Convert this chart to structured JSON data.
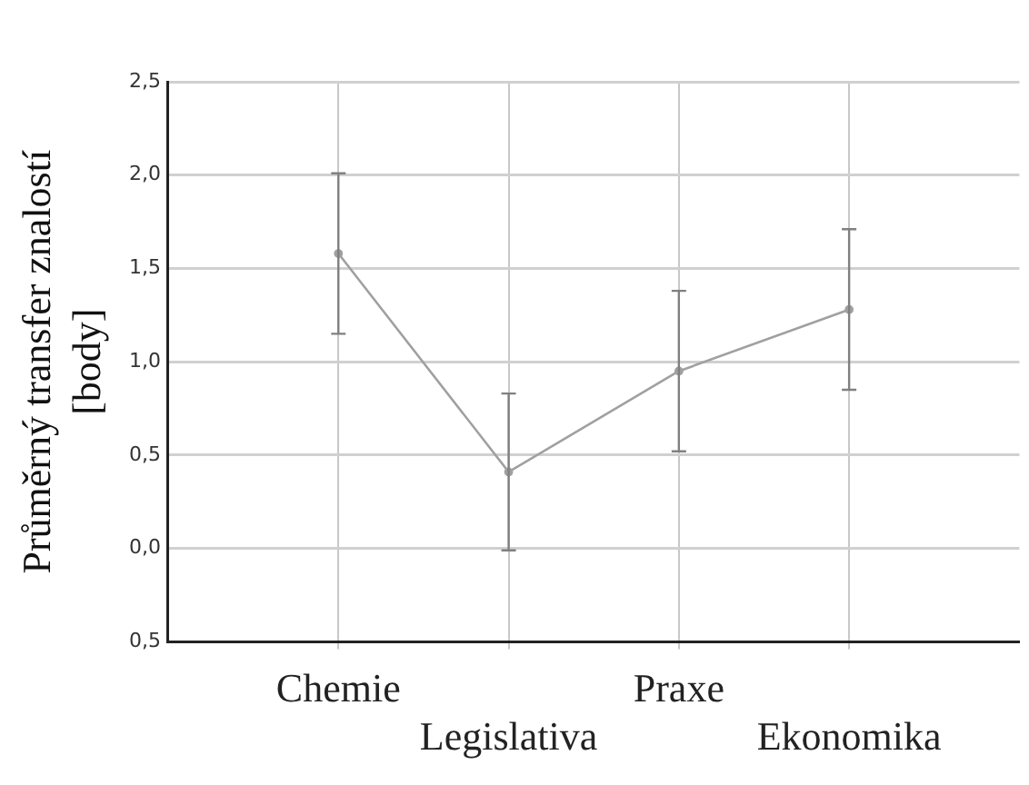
{
  "chart_data": {
    "type": "line",
    "ylabel": "Průměrný transfer znalostí [body]",
    "categories": [
      "Chemie",
      "Legislativa",
      "Praxe",
      "Ekonomika"
    ],
    "values": [
      1.58,
      0.41,
      0.95,
      1.28
    ],
    "errors": [
      0.43,
      0.42,
      0.43,
      0.43
    ],
    "color": "#a0a0a0",
    "marker": "circle",
    "grid": true,
    "ylim": [
      -0.5,
      2.5
    ],
    "yticks": [
      {
        "value": -0.5,
        "label": "0,5"
      },
      {
        "value": 0,
        "label": "0,0"
      },
      {
        "value": 0.5,
        "label": "0,5"
      },
      {
        "value": 1,
        "label": "1,0"
      },
      {
        "value": 1.5,
        "label": "1,5"
      },
      {
        "value": 2,
        "label": "2,0"
      },
      {
        "value": 2.5,
        "label": "2,5"
      }
    ]
  }
}
